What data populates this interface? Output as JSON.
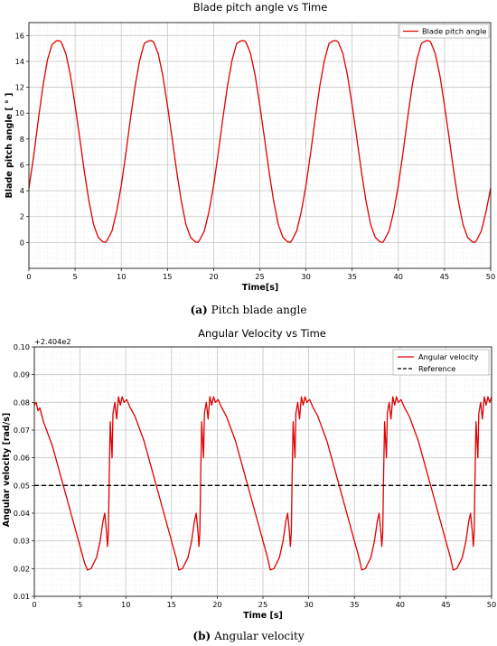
{
  "chart_data": [
    {
      "type": "line",
      "title": "Blade pitch angle vs Time",
      "xlabel": "Time[s]",
      "ylabel": "Blade pitch angle [ ° ]",
      "xlim": [
        0,
        50
      ],
      "ylim": [
        -2,
        17
      ],
      "x_ticks": [
        0,
        5,
        10,
        15,
        20,
        25,
        30,
        35,
        40,
        45,
        50
      ],
      "y_ticks": [
        0,
        2,
        4,
        6,
        8,
        10,
        12,
        14,
        16
      ],
      "grid": true,
      "legend_position": "top-right",
      "series": [
        {
          "name": "Blade pitch angle",
          "color": "#e00000",
          "style": "solid",
          "x": [
            0,
            0.5,
            1,
            1.5,
            2,
            2.5,
            3,
            3.3,
            3.5,
            4,
            4.5,
            5,
            5.5,
            6,
            6.5,
            7,
            7.5,
            8,
            8.3,
            8.5,
            9,
            9.5,
            10,
            10.5,
            11,
            11.5,
            12,
            12.5,
            13,
            13.3,
            13.5,
            14,
            14.5,
            15,
            15.5,
            16,
            16.5,
            17,
            17.5,
            18,
            18.3,
            18.5,
            19,
            19.5,
            20,
            20.5,
            21,
            21.5,
            22,
            22.5,
            23,
            23.3,
            23.5,
            24,
            24.5,
            25,
            25.5,
            26,
            26.5,
            27,
            27.5,
            28,
            28.3,
            28.5,
            29,
            29.5,
            30,
            30.5,
            31,
            31.5,
            32,
            32.5,
            33,
            33.3,
            33.5,
            34,
            34.5,
            35,
            35.5,
            36,
            36.5,
            37,
            37.5,
            38,
            38.3,
            38.5,
            39,
            39.5,
            40,
            40.5,
            41,
            41.5,
            42,
            42.5,
            43,
            43.3,
            43.5,
            44,
            44.5,
            45,
            45.5,
            46,
            46.5,
            47,
            47.5,
            48,
            48.3,
            48.5,
            49,
            49.5,
            50
          ],
          "y": [
            4.2,
            6.6,
            9.4,
            12.0,
            14.1,
            15.3,
            15.6,
            15.6,
            15.5,
            14.6,
            12.9,
            10.6,
            8.1,
            5.5,
            3.2,
            1.4,
            0.4,
            0.05,
            0.0,
            0.2,
            0.9,
            2.4,
            4.4,
            6.9,
            9.6,
            12.1,
            14.1,
            15.4,
            15.6,
            15.6,
            15.5,
            14.6,
            12.9,
            10.6,
            8.1,
            5.5,
            3.2,
            1.4,
            0.4,
            0.05,
            0.0,
            0.2,
            0.9,
            2.4,
            4.4,
            6.9,
            9.6,
            12.1,
            14.1,
            15.4,
            15.6,
            15.6,
            15.5,
            14.6,
            12.9,
            10.6,
            8.1,
            5.5,
            3.2,
            1.4,
            0.4,
            0.05,
            0.0,
            0.2,
            0.9,
            2.4,
            4.4,
            6.9,
            9.6,
            12.1,
            14.1,
            15.4,
            15.6,
            15.6,
            15.5,
            14.6,
            12.9,
            10.6,
            8.1,
            5.5,
            3.2,
            1.4,
            0.4,
            0.05,
            0.0,
            0.2,
            0.9,
            2.4,
            4.4,
            6.9,
            9.6,
            12.1,
            14.1,
            15.4,
            15.6,
            15.6,
            15.5,
            14.6,
            12.9,
            10.6,
            8.1,
            5.5,
            3.2,
            1.4,
            0.4,
            0.05,
            0.0,
            0.2,
            0.9,
            2.4,
            4.2
          ]
        }
      ],
      "caption_label": "(a)",
      "caption_text": "Pitch blade angle"
    },
    {
      "type": "line",
      "title": "Angular Velocity vs Time",
      "xlabel": "Time [s]",
      "ylabel": "Angular velocity [rad/s]",
      "y_offset_label": "+2.404e2",
      "xlim": [
        0,
        50
      ],
      "ylim": [
        0.01,
        0.1
      ],
      "x_ticks": [
        0,
        5,
        10,
        15,
        20,
        25,
        30,
        35,
        40,
        45,
        50
      ],
      "y_ticks": [
        0.01,
        0.02,
        0.03,
        0.04,
        0.05,
        0.06,
        0.07,
        0.08,
        0.09,
        0.1
      ],
      "y_tick_labels": [
        "0.01",
        "0.02",
        "0.03",
        "0.04",
        "0.05",
        "0.06",
        "0.07",
        "0.08",
        "0.09",
        "0.10"
      ],
      "grid": true,
      "legend_position": "top-right",
      "series": [
        {
          "name": "Angular velocity",
          "color": "#e00000",
          "style": "solid",
          "x": [
            0,
            0.2,
            0.4,
            0.6,
            1,
            2,
            3,
            4,
            5,
            5.5,
            5.8,
            6.2,
            6.8,
            7.2,
            7.5,
            7.7,
            7.9,
            8.0,
            8.1,
            8.2,
            8.3,
            8.5,
            8.6,
            8.8,
            9.0,
            9.2,
            9.4,
            9.6,
            9.8,
            10.1,
            10.5,
            11,
            12,
            13,
            14,
            15,
            15.5,
            15.8,
            16.2,
            16.8,
            17.2,
            17.5,
            17.7,
            17.9,
            18.0,
            18.1,
            18.2,
            18.3,
            18.5,
            18.6,
            18.8,
            19.0,
            19.2,
            19.4,
            19.6,
            19.8,
            20.1,
            20.5,
            21,
            22,
            23,
            24,
            25,
            25.5,
            25.8,
            26.2,
            26.8,
            27.2,
            27.5,
            27.7,
            27.9,
            28.0,
            28.1,
            28.2,
            28.3,
            28.5,
            28.6,
            28.8,
            29.0,
            29.2,
            29.4,
            29.6,
            29.8,
            30.1,
            30.5,
            31,
            32,
            33,
            34,
            35,
            35.5,
            35.8,
            36.2,
            36.8,
            37.2,
            37.5,
            37.7,
            37.9,
            38.0,
            38.1,
            38.2,
            38.3,
            38.5,
            38.6,
            38.8,
            39.0,
            39.2,
            39.4,
            39.6,
            39.8,
            40.1,
            40.5,
            41,
            42,
            43,
            44,
            45,
            45.5,
            45.8,
            46.2,
            46.8,
            47.2,
            47.5,
            47.7,
            47.9,
            48.0,
            48.1,
            48.2,
            48.3,
            48.5,
            48.6,
            48.8,
            49.0,
            49.2,
            49.4,
            49.6,
            49.8,
            50
          ],
          "y": [
            0.079,
            0.08,
            0.077,
            0.078,
            0.073,
            0.064,
            0.052,
            0.04,
            0.028,
            0.022,
            0.0195,
            0.02,
            0.024,
            0.03,
            0.037,
            0.04,
            0.033,
            0.028,
            0.033,
            0.055,
            0.073,
            0.06,
            0.076,
            0.08,
            0.074,
            0.082,
            0.079,
            0.082,
            0.08,
            0.081,
            0.078,
            0.075,
            0.066,
            0.054,
            0.042,
            0.03,
            0.024,
            0.0195,
            0.02,
            0.024,
            0.03,
            0.037,
            0.04,
            0.033,
            0.028,
            0.033,
            0.055,
            0.073,
            0.06,
            0.076,
            0.08,
            0.074,
            0.082,
            0.079,
            0.082,
            0.08,
            0.081,
            0.078,
            0.075,
            0.066,
            0.054,
            0.042,
            0.03,
            0.024,
            0.0195,
            0.02,
            0.024,
            0.03,
            0.037,
            0.04,
            0.033,
            0.028,
            0.033,
            0.055,
            0.073,
            0.06,
            0.076,
            0.08,
            0.074,
            0.082,
            0.079,
            0.082,
            0.08,
            0.081,
            0.078,
            0.075,
            0.066,
            0.054,
            0.042,
            0.03,
            0.024,
            0.0195,
            0.02,
            0.024,
            0.03,
            0.037,
            0.04,
            0.033,
            0.028,
            0.033,
            0.055,
            0.073,
            0.06,
            0.076,
            0.08,
            0.074,
            0.082,
            0.079,
            0.082,
            0.08,
            0.081,
            0.078,
            0.075,
            0.066,
            0.054,
            0.042,
            0.03,
            0.024,
            0.0195,
            0.02,
            0.024,
            0.03,
            0.037,
            0.04,
            0.033,
            0.028,
            0.033,
            0.055,
            0.073,
            0.06,
            0.076,
            0.08,
            0.074,
            0.082,
            0.079,
            0.082,
            0.08,
            0.082
          ]
        },
        {
          "name": "Reference",
          "color": "#000000",
          "style": "dashed",
          "x": [
            0,
            50
          ],
          "y": [
            0.05,
            0.05
          ]
        }
      ],
      "caption_label": "(b)",
      "caption_text": "Angular velocity"
    }
  ]
}
